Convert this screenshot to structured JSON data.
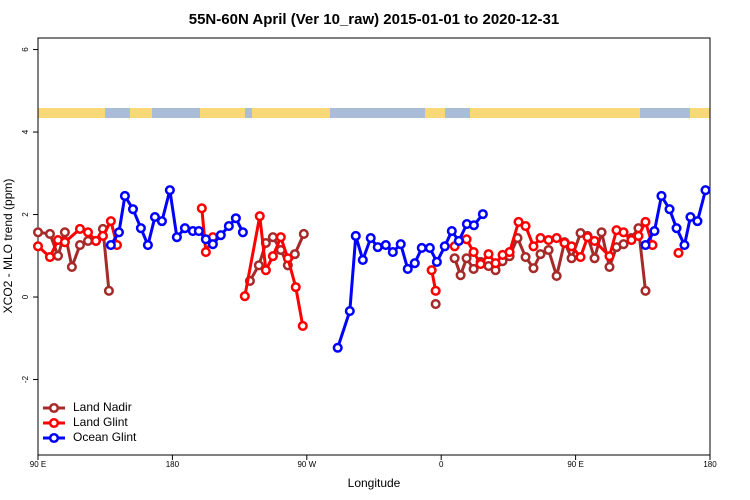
{
  "chart_data": {
    "type": "line",
    "title": "55N-60N April (Ver 10_raw)   2015-01-01 to 2020-12-31",
    "xlabel": "Longitude",
    "ylabel": "XCO2 - MLO trend (ppm)",
    "xlim": [
      90,
      540
    ],
    "ylim": [
      -3.83,
      6.28
    ],
    "xticks": [
      {
        "value": 90,
        "label": "90 E"
      },
      180,
      {
        "value": 270,
        "label": "90 W"
      },
      {
        "value": 360,
        "label": "0"
      },
      {
        "value": 450,
        "label": "90 E"
      },
      180
    ],
    "yticks": [
      -2,
      0,
      2,
      4,
      6
    ],
    "legend": "bottom-left",
    "series": [
      {
        "name": "Land Nadir",
        "color": "#a52a2a",
        "x": [
          90,
          98,
          103.4,
          108,
          112.7,
          118.1,
          123.5,
          128.8,
          133.5,
          137.5,
          185,
          231.9,
          237.9,
          242.6,
          247.3,
          252.6,
          257.3,
          262,
          268,
          310,
          356.3,
          362,
          369,
          373,
          377,
          381.7,
          386.4,
          391.7,
          396.4,
          401.1,
          405.8,
          411.1,
          416.5,
          421.8,
          426.5,
          431.9,
          437.3,
          442.6,
          447.3,
          453.3,
          458,
          462.7,
          467.4,
          472.7,
          477.4,
          482.1,
          487.4,
          492.1,
          496.8
        ],
        "values": [
          1.57,
          1.53,
          1.0,
          1.57,
          0.73,
          1.26,
          1.36,
          1.36,
          1.65,
          0.15,
          null,
          0.39,
          0.77,
          1.31,
          1.45,
          1.14,
          0.77,
          1.04,
          1.53,
          null,
          -0.17,
          null,
          0.94,
          0.53,
          0.94,
          0.68,
          0.85,
          0.75,
          0.65,
          0.87,
          0.99,
          1.43,
          0.97,
          0.7,
          1.04,
          1.14,
          0.51,
          1.33,
          0.94,
          1.55,
          1.48,
          0.94,
          1.57,
          0.73,
          1.21,
          1.28,
          1.43,
          1.67,
          0.15
        ]
      },
      {
        "name": "Land Glint",
        "color": "#ff0000",
        "x": [
          90,
          98,
          103.4,
          108,
          118.1,
          123.5,
          128.8,
          133.5,
          138.8,
          142.9,
          170,
          199.7,
          202.4,
          207.1,
          218,
          228.5,
          238.5,
          242.6,
          247.3,
          252.6,
          257.3,
          262.6,
          267.3,
          310,
          353.6,
          356.3,
          362,
          369,
          377,
          381.7,
          386.4,
          391.7,
          396.4,
          401.1,
          405.8,
          411.8,
          416.5,
          421.8,
          426.5,
          431.9,
          437.3,
          442.6,
          447.3,
          453.3,
          458,
          462.7,
          472.7,
          477.4,
          482.1,
          487.4,
          492.1,
          496.8,
          501.5,
          510,
          518.9
        ],
        "values": [
          1.23,
          0.97,
          1.38,
          1.33,
          1.65,
          1.57,
          1.36,
          1.48,
          1.84,
          1.26,
          null,
          2.15,
          1.09,
          1.45,
          null,
          0.02,
          1.96,
          0.65,
          0.99,
          1.45,
          0.94,
          0.24,
          -0.7,
          null,
          0.65,
          0.15,
          null,
          1.23,
          1.4,
          1.09,
          0.8,
          1.04,
          0.82,
          1.02,
          1.09,
          1.82,
          1.72,
          1.23,
          1.43,
          1.38,
          1.43,
          1.31,
          1.23,
          0.97,
          1.45,
          1.36,
          0.99,
          1.62,
          1.57,
          1.38,
          1.48,
          1.82,
          1.26,
          null,
          1.07
        ]
      },
      {
        "name": "Ocean Glint",
        "color": "#0000ff",
        "x": [
          138.8,
          144.2,
          148.2,
          153.6,
          158.9,
          163.6,
          168.3,
          173,
          178.3,
          183,
          188.4,
          193.7,
          197.7,
          202.4,
          207.1,
          212.4,
          217.8,
          222.5,
          227.2,
          260,
          290.7,
          298.8,
          302.8,
          307.5,
          312.8,
          317.5,
          322.9,
          327.6,
          332.9,
          337.6,
          342.3,
          347,
          352.4,
          357.1,
          362.4,
          367.1,
          371.8,
          377.2,
          381.9,
          387.9,
          440,
          496.8,
          502.8,
          507.5,
          512.9,
          517.6,
          522.9,
          526.9,
          531.6,
          537
        ],
        "values": [
          1.26,
          1.57,
          2.45,
          2.13,
          1.67,
          1.26,
          1.94,
          1.84,
          2.59,
          1.45,
          1.67,
          1.6,
          1.6,
          1.4,
          1.28,
          1.5,
          1.72,
          1.91,
          1.57,
          null,
          -1.23,
          -0.34,
          1.48,
          0.9,
          1.43,
          1.21,
          1.26,
          1.09,
          1.28,
          0.68,
          0.82,
          1.19,
          1.19,
          0.85,
          1.23,
          1.6,
          1.36,
          1.77,
          1.74,
          2.01,
          null,
          1.26,
          1.6,
          2.45,
          2.13,
          1.67,
          1.26,
          1.94,
          1.84,
          2.59
        ]
      }
    ]
  }
}
